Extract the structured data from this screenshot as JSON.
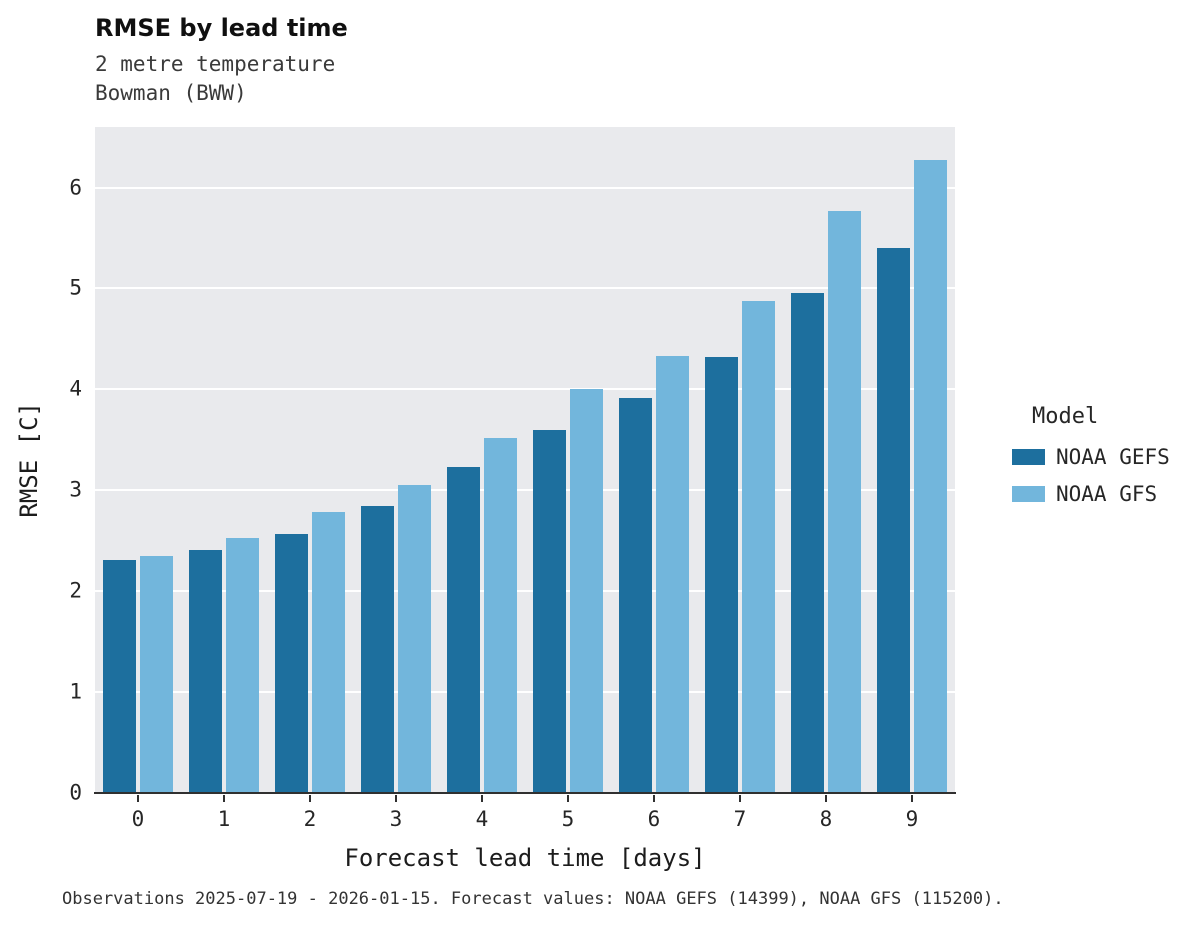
{
  "header": {
    "title": "RMSE by lead time",
    "subtitle1": "2 metre temperature",
    "subtitle2": "Bowman (BWW)"
  },
  "legend": {
    "title": "Model",
    "entries": [
      {
        "label": "NOAA GEFS",
        "color": "#1d6f9e"
      },
      {
        "label": "NOAA GFS",
        "color": "#72b6dc"
      }
    ]
  },
  "footer": {
    "caption": "Observations 2025-07-19 - 2026-01-15. Forecast values: NOAA GEFS (14399), NOAA GFS (115200)."
  },
  "chart_data": {
    "type": "bar",
    "title": "RMSE by lead time",
    "subtitle": [
      "2 metre temperature",
      "Bowman (BWW)"
    ],
    "categories": [
      0,
      1,
      2,
      3,
      4,
      5,
      6,
      7,
      8,
      9
    ],
    "series": [
      {
        "name": "NOAA GEFS",
        "color": "#1d6f9e",
        "values": [
          2.31,
          2.41,
          2.57,
          2.84,
          3.23,
          3.6,
          3.91,
          4.32,
          4.96,
          5.4
        ]
      },
      {
        "name": "NOAA GFS",
        "color": "#72b6dc",
        "values": [
          2.35,
          2.53,
          2.78,
          3.05,
          3.52,
          4.0,
          4.33,
          4.88,
          5.77,
          6.27
        ]
      }
    ],
    "xlabel": "Forecast lead time [days]",
    "ylabel": "RMSE [C]",
    "ylim": [
      0,
      6.6
    ],
    "yticks": [
      0,
      1,
      2,
      3,
      4,
      5,
      6
    ],
    "grid": true,
    "grid_color": "#ffffff",
    "plot_background": "#e9eaed",
    "legend_title": "Model",
    "legend_position": "right"
  }
}
